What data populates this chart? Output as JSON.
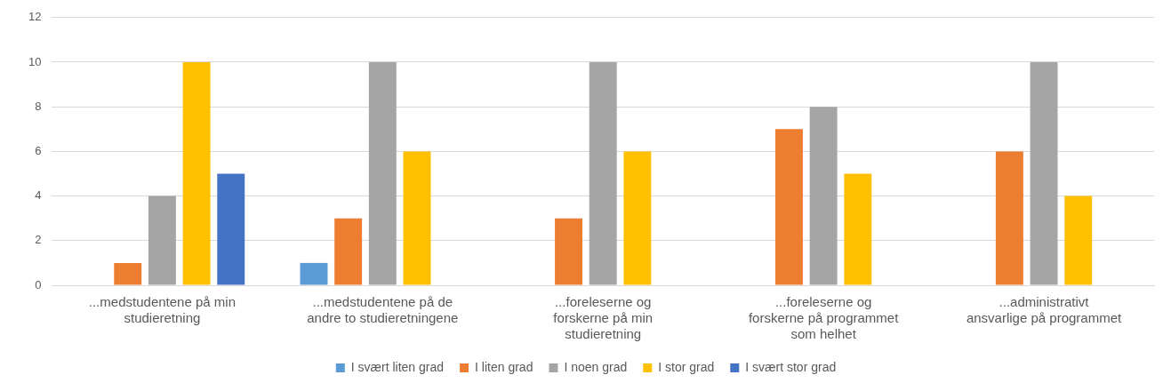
{
  "chart_data": {
    "type": "bar",
    "categories": [
      "...medstudentene på min studieretning",
      "...medstudentene på de andre to studieretningene",
      "...foreleserne og forskerne på min studieretning",
      "...foreleserne og forskerne på programmet som helhet",
      "...administrativt ansvarlige på programmet"
    ],
    "series": [
      {
        "name": "I svært liten grad",
        "color": "#5b9bd5",
        "values": [
          null,
          1,
          null,
          null,
          null
        ]
      },
      {
        "name": "I liten grad",
        "color": "#ed7d31",
        "values": [
          1,
          3,
          3,
          7,
          6
        ]
      },
      {
        "name": "I noen grad",
        "color": "#a5a5a5",
        "values": [
          4,
          10,
          10,
          8,
          10
        ]
      },
      {
        "name": "I stor grad",
        "color": "#ffc000",
        "values": [
          10,
          6,
          6,
          5,
          4
        ]
      },
      {
        "name": "I svært stor grad",
        "color": "#4472c4",
        "values": [
          5,
          null,
          null,
          null,
          null
        ]
      }
    ],
    "ylim": [
      0,
      12
    ],
    "yticks": [
      0,
      2,
      4,
      6,
      8,
      10,
      12
    ],
    "grid": "y",
    "legend": "bottom"
  }
}
